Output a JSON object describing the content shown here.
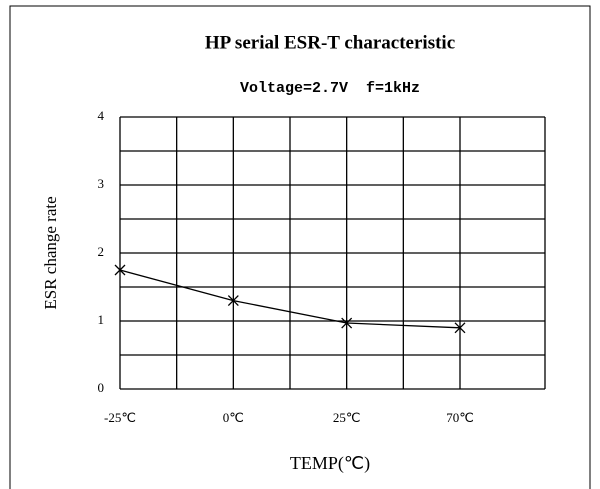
{
  "chart_data": {
    "type": "line",
    "title": "HP serial ESR-T characteristic",
    "subtitle": "Voltage=2.7V  f=1kHz",
    "x_label": "TEMP(℃)",
    "y_label": "ESR change rate",
    "categories": [
      "-25℃",
      "0℃",
      "25℃",
      "70℃"
    ],
    "values": [
      1.75,
      1.3,
      0.97,
      0.9
    ],
    "color": "#000000",
    "ylim": [
      0,
      4
    ],
    "yticks": [
      0,
      1,
      2,
      3,
      4
    ],
    "minor_yticks": [
      0.5,
      1.5,
      2.5,
      3.5
    ],
    "grid": true
  }
}
